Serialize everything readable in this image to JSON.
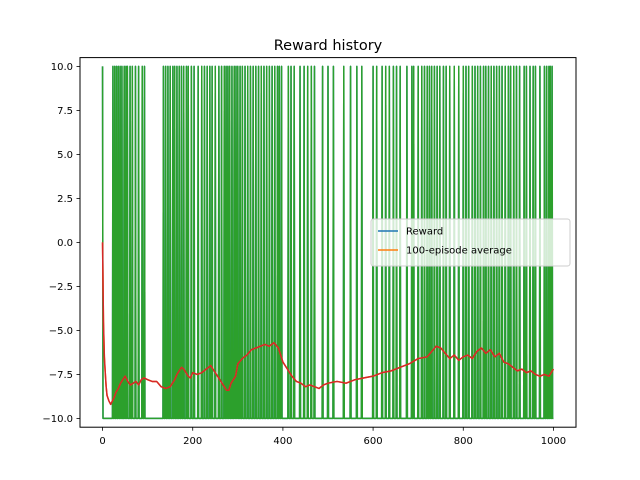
{
  "chart_data": {
    "type": "line",
    "title": "Reward history",
    "xlabel": "",
    "ylabel": "",
    "xlim": [
      -50,
      1050
    ],
    "ylim": [
      -10.5,
      10.5
    ],
    "x_ticks": [
      0,
      200,
      400,
      600,
      800,
      1000
    ],
    "x_tick_labels": [
      "0",
      "200",
      "400",
      "600",
      "800",
      "1000"
    ],
    "y_ticks": [
      10.0,
      7.5,
      5.0,
      2.5,
      0.0,
      -2.5,
      -5.0,
      -7.5,
      -10.0
    ],
    "y_tick_labels": [
      "10.0",
      "7.5",
      "5.0",
      "2.5",
      "0.0",
      "−2.5",
      "−5.0",
      "−7.5",
      "−10.0"
    ],
    "grid": false,
    "legend": {
      "placement": "center-right",
      "entries": [
        {
          "name": "Reward",
          "color": "#1f77b4"
        },
        {
          "name": "100-episode average",
          "color": "#ff7f0e"
        }
      ]
    },
    "series": [
      {
        "name": "Reward",
        "color": "#1f77b4",
        "baseline": -10,
        "peak": 10,
        "spike_episodes": [
          0,
          23,
          27,
          31,
          35,
          39,
          43,
          48,
          52,
          55,
          61,
          66,
          73,
          80,
          88,
          93,
          135,
          140,
          145,
          150,
          156,
          160,
          165,
          170,
          175,
          180,
          186,
          190,
          197,
          203,
          212,
          220,
          226,
          232,
          238,
          243,
          250,
          258,
          264,
          270,
          274,
          278,
          282,
          287,
          292,
          296,
          300,
          305,
          310,
          316,
          322,
          328,
          334,
          340,
          346,
          352,
          358,
          364,
          370,
          376,
          382,
          388,
          392,
          397,
          412,
          418,
          425,
          438,
          447,
          455,
          463,
          470,
          488,
          500,
          512,
          535,
          550,
          564,
          575,
          600,
          608,
          620,
          628,
          636,
          645,
          652,
          660,
          675,
          686,
          690,
          700,
          708,
          714,
          720,
          725,
          730,
          736,
          742,
          748,
          756,
          762,
          770,
          780,
          790,
          800,
          806,
          812,
          820,
          826,
          832,
          838,
          845,
          850,
          856,
          862,
          868,
          874,
          880,
          886,
          893,
          900,
          905,
          912,
          918,
          925,
          935,
          940,
          948,
          955,
          960,
          970,
          980,
          985,
          990,
          993,
          997
        ]
      },
      {
        "name": "",
        "color": "#2ca02c",
        "same_as": "Reward"
      },
      {
        "name": "100-episode average",
        "color": "#ff7f0e",
        "x": [
          0,
          2,
          4,
          6,
          8,
          10,
          14,
          18,
          22,
          26,
          30,
          35,
          40,
          45,
          50,
          56,
          62,
          68,
          74,
          80,
          86,
          92,
          100,
          110,
          120,
          130,
          140,
          150,
          155,
          160,
          165,
          170,
          175,
          180,
          185,
          190,
          195,
          200,
          210,
          220,
          230,
          240,
          250,
          260,
          270,
          275,
          280,
          285,
          290,
          295,
          300,
          310,
          320,
          330,
          340,
          350,
          360,
          370,
          380,
          390,
          395,
          400,
          410,
          420,
          430,
          440,
          450,
          460,
          470,
          480,
          490,
          500,
          520,
          540,
          560,
          580,
          600,
          620,
          640,
          660,
          680,
          700,
          720,
          730,
          740,
          750,
          760,
          770,
          780,
          790,
          800,
          810,
          820,
          830,
          840,
          850,
          860,
          870,
          880,
          890,
          900,
          910,
          920,
          930,
          940,
          950,
          960,
          970,
          980,
          990,
          995,
          1000
        ],
        "y": [
          0.0,
          -4.5,
          -6.5,
          -7.4,
          -8.2,
          -8.7,
          -9.0,
          -9.2,
          -9.0,
          -8.8,
          -8.5,
          -8.3,
          -8.0,
          -7.8,
          -7.6,
          -7.9,
          -8.1,
          -8.0,
          -7.9,
          -8.1,
          -7.8,
          -7.7,
          -7.8,
          -7.9,
          -7.9,
          -8.2,
          -8.3,
          -8.2,
          -8.0,
          -7.8,
          -7.5,
          -7.3,
          -7.1,
          -7.2,
          -7.4,
          -7.6,
          -7.7,
          -7.4,
          -7.5,
          -7.4,
          -7.2,
          -7.0,
          -7.4,
          -7.8,
          -8.2,
          -8.4,
          -8.4,
          -8.0,
          -7.8,
          -7.6,
          -6.9,
          -6.6,
          -6.4,
          -6.1,
          -6.0,
          -5.9,
          -5.8,
          -5.9,
          -5.7,
          -6.0,
          -6.4,
          -6.8,
          -7.2,
          -7.6,
          -7.9,
          -8.0,
          -8.2,
          -8.1,
          -8.2,
          -8.3,
          -8.1,
          -8.0,
          -7.9,
          -8.0,
          -7.8,
          -7.7,
          -7.6,
          -7.4,
          -7.3,
          -7.1,
          -6.9,
          -6.6,
          -6.5,
          -6.2,
          -5.9,
          -6.0,
          -6.3,
          -6.6,
          -6.4,
          -6.7,
          -6.5,
          -6.4,
          -6.6,
          -6.2,
          -6.0,
          -6.3,
          -6.1,
          -6.5,
          -6.3,
          -6.8,
          -6.9,
          -7.1,
          -7.3,
          -7.2,
          -7.4,
          -7.3,
          -7.5,
          -7.6,
          -7.5,
          -7.6,
          -7.4,
          -7.2
        ]
      },
      {
        "name": "",
        "color": "#d62728",
        "same_as": "100-episode average"
      }
    ]
  }
}
